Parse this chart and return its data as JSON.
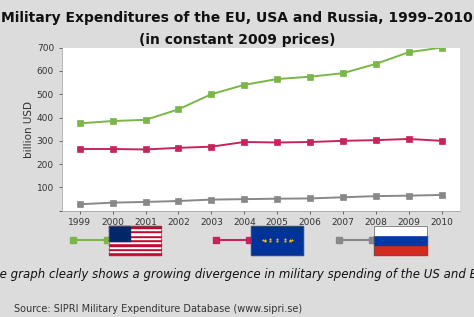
{
  "title_line1": "Military Expenditures of the EU, USA and Russia, 1999–2010",
  "title_line2": "(in constant 2009 prices)",
  "ylabel": "billion USD",
  "years": [
    1999,
    2000,
    2001,
    2002,
    2003,
    2004,
    2005,
    2006,
    2007,
    2008,
    2009,
    2010
  ],
  "usa": [
    375,
    385,
    390,
    435,
    500,
    540,
    565,
    575,
    590,
    630,
    680,
    700
  ],
  "eu": [
    265,
    265,
    263,
    270,
    275,
    295,
    293,
    295,
    300,
    303,
    308,
    300
  ],
  "russia": [
    28,
    35,
    38,
    42,
    48,
    50,
    52,
    53,
    58,
    63,
    65,
    68
  ],
  "usa_color": "#7ab648",
  "eu_color": "#c8245c",
  "russia_color": "#888888",
  "bg_color": "#dcdcdc",
  "plot_bg_color": "#ffffff",
  "ylim": [
    0,
    700
  ],
  "yticks": [
    0,
    100,
    200,
    300,
    400,
    500,
    600,
    700
  ],
  "caption": "The graph clearly shows a growing divergence in military spending of the US and EU.",
  "source": "Source: SIPRI Military Expenditure Database (www.sipri.se)",
  "title_fontsize": 10,
  "caption_fontsize": 8.5,
  "source_fontsize": 7
}
